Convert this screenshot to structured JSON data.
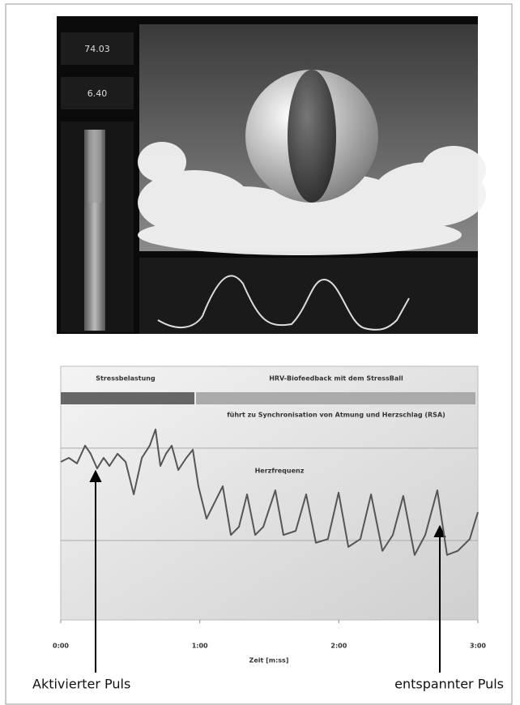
{
  "monitor": {
    "hr_value": "74.03",
    "resp_value": "6.40"
  },
  "chart_data": {
    "type": "line",
    "header_left": "Stressbelastung",
    "header_right": "HRV-Biofeedback mit dem StressBall",
    "subtitle": "führt zu Synchronisation von Atmung und Herzschlag (RSA)",
    "series_label": "Herzfrequenz",
    "xlabel": "Zeit [m:ss]",
    "annotations": [
      "Aktivierter Puls",
      "entspannter Puls"
    ],
    "x": [
      0,
      3.5,
      7.0,
      10.5,
      12.9,
      15.7,
      18.5,
      21.0,
      24.5,
      28.0,
      31.5,
      35.0,
      38.4,
      40.9,
      43.0,
      45.4,
      47.9,
      50.7,
      54.2,
      57.0,
      59.4,
      62.9,
      66.4,
      69.9,
      73.4,
      76.9,
      80.4,
      83.9,
      87.4,
      92.6,
      96.1,
      101.4,
      105.9,
      110.1,
      115.3,
      119.9,
      124.1,
      129.3,
      133.9,
      138.8,
      143.3,
      147.8,
      152.7,
      157.3,
      162.5,
      166.7,
      171.3,
      176.5,
      180
    ],
    "series": [
      {
        "color": "#555555",
        "values": [
          62.3,
          63.9,
          61.7,
          68.7,
          65.5,
          59.7,
          63.9,
          60.7,
          65.5,
          62.3,
          49.5,
          63.9,
          68.7,
          75.1,
          60.7,
          65.5,
          68.7,
          59.1,
          63.9,
          67.1,
          52.7,
          39.9,
          46.3,
          52.7,
          33.5,
          36.7,
          49.5,
          33.5,
          36.7,
          51.1,
          33.5,
          35.1,
          49.5,
          30.4,
          31.9,
          50.2,
          28.8,
          31.9,
          49.5,
          27.2,
          33.5,
          48.9,
          25.6,
          33.5,
          51.1,
          25.6,
          27.2,
          31.9,
          42.5
        ]
      }
    ],
    "xlim": [
      0,
      180
    ],
    "xticks": [
      {
        "value": 0,
        "label": "0:00"
      },
      {
        "value": 60,
        "label": "1:00"
      },
      {
        "value": 120,
        "label": "2:00"
      },
      {
        "value": 180,
        "label": "3:00"
      }
    ],
    "ylim": [
      0,
      100
    ]
  }
}
